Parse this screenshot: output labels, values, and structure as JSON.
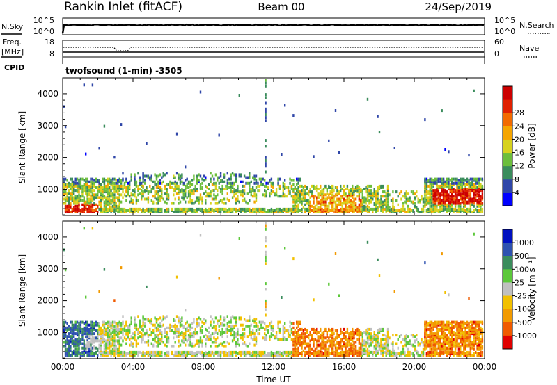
{
  "header": {
    "station": "Rankin Inlet (fitACF)",
    "beam": "Beam 00",
    "date": "24/Sep/2019"
  },
  "noise_panel": {
    "left_label": "N.Sky",
    "right_label": "N.Search",
    "left_ticks": [
      "10^5",
      "10^0"
    ],
    "right_ticks": [
      "10^5",
      "10^0"
    ]
  },
  "freq_panel": {
    "left_label": "Freq.",
    "left_unit": "[MHz]",
    "left_ticks": [
      "18",
      "8"
    ],
    "right_label": "Nave",
    "right_ticks": [
      "60",
      "0"
    ]
  },
  "cpid_label": "CPID",
  "cpid_text": "twofsound (1-min) -3505",
  "x_axis": {
    "label": "Time UT",
    "ticks": [
      "00:00",
      "04:00",
      "08:00",
      "12:00",
      "16:00",
      "20:00",
      "00:00"
    ]
  },
  "chart_data": [
    {
      "type": "heatmap",
      "name": "power",
      "ylabel": "Slant Range [km]",
      "yticks": [
        "1000",
        "2000",
        "3000",
        "4000"
      ],
      "ylim": [
        180,
        4500
      ],
      "xlim": [
        0,
        24
      ],
      "colorbar_label": "Power [dB]",
      "colorbar_ticks": [
        "4",
        "8",
        "12",
        "16",
        "20",
        "24",
        "28"
      ],
      "colorbar_colors": [
        "#0000ff",
        "#2f46a8",
        "#3a8c5c",
        "#6cbe3c",
        "#d7d21e",
        "#f5a500",
        "#f26a00",
        "#e02000",
        "#cc0000"
      ]
    },
    {
      "type": "heatmap",
      "name": "velocity",
      "ylabel": "Slant Range [km]",
      "yticks": [
        "1000",
        "2000",
        "3000",
        "4000"
      ],
      "ylim": [
        180,
        4500
      ],
      "xlim": [
        0,
        24
      ],
      "colorbar_label": "Velocity [m s⁻¹]",
      "colorbar_ticks": [
        "1000",
        "500",
        "100",
        "25",
        "-25",
        "-100",
        "-500",
        "-1000"
      ],
      "colorbar_colors": [
        "#0010c0",
        "#2e52b0",
        "#3a8c5c",
        "#5cc83a",
        "#c0c0c0",
        "#f2c000",
        "#f29a00",
        "#f05a00",
        "#e00000"
      ]
    }
  ]
}
